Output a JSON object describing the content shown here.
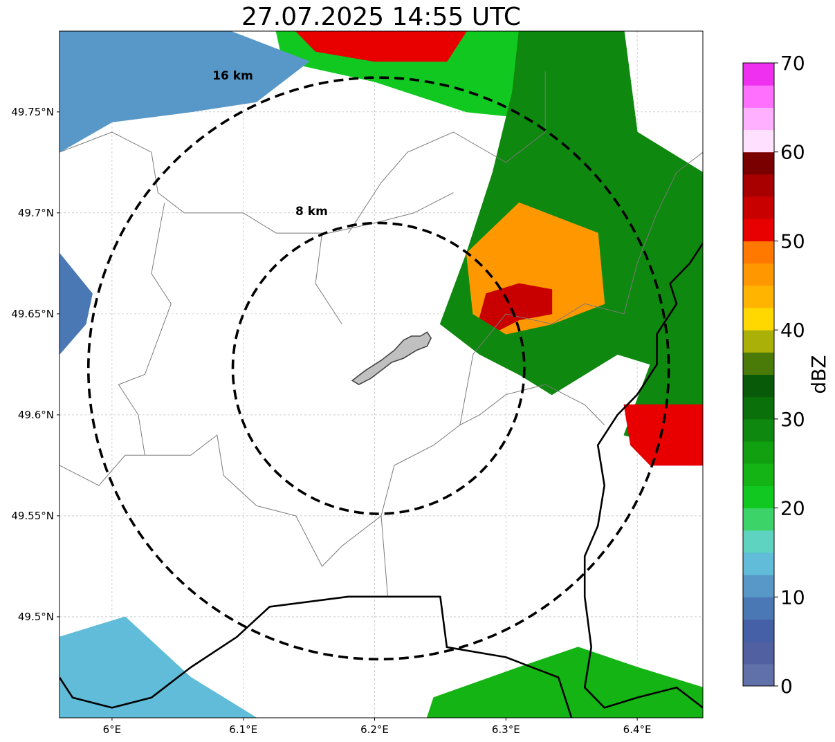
{
  "title": "27.07.2025 14:55 UTC",
  "map": {
    "lon_range": [
      5.96,
      6.45
    ],
    "lat_range": [
      49.45,
      49.79
    ],
    "x_ticks": [
      {
        "value": 6.0,
        "label": "6°E"
      },
      {
        "value": 6.1,
        "label": "6.1°E"
      },
      {
        "value": 6.2,
        "label": "6.2°E"
      },
      {
        "value": 6.3,
        "label": "6.3°E"
      },
      {
        "value": 6.4,
        "label": "6.4°E"
      }
    ],
    "y_ticks": [
      {
        "value": 49.5,
        "label": "49.5°N"
      },
      {
        "value": 49.55,
        "label": "49.55°N"
      },
      {
        "value": 49.6,
        "label": "49.6°N"
      },
      {
        "value": 49.65,
        "label": "49.65°N"
      },
      {
        "value": 49.7,
        "label": "49.7°N"
      },
      {
        "value": 49.75,
        "label": "49.75°N"
      }
    ],
    "grid": true,
    "radar_center": {
      "lon": 6.203,
      "lat": 49.623
    },
    "range_rings": [
      {
        "label": "8 km",
        "radius_lon": 0.111,
        "radius_lat": 0.072,
        "label_lon": 6.152,
        "label_lat": 49.699
      },
      {
        "label": "16 km",
        "radius_lon": 0.221,
        "radius_lat": 0.144,
        "label_lon": 6.092,
        "label_lat": 49.766
      }
    ]
  },
  "colorbar": {
    "label": "dBZ",
    "min": 0,
    "max": 70,
    "ticks": [
      {
        "value": 0,
        "label": "0"
      },
      {
        "value": 10,
        "label": "10"
      },
      {
        "value": 20,
        "label": "20"
      },
      {
        "value": 30,
        "label": "30"
      },
      {
        "value": 40,
        "label": "40"
      },
      {
        "value": 50,
        "label": "50"
      },
      {
        "value": 60,
        "label": "60"
      },
      {
        "value": 70,
        "label": "70"
      }
    ],
    "colors": [
      "#6070a8",
      "#5060a0",
      "#4660a8",
      "#4a78b4",
      "#5898c8",
      "#60bcd8",
      "#5ed4c0",
      "#3cd468",
      "#10c820",
      "#14b414",
      "#10a010",
      "#0e880e",
      "#0a700a",
      "#085a08",
      "#4a7a08",
      "#aab008",
      "#ffd800",
      "#ffb400",
      "#ff9800",
      "#ff7800",
      "#e80000",
      "#c80000",
      "#a80000",
      "#7a0000",
      "#ffe0ff",
      "#ffb0ff",
      "#ff70ff",
      "#f030f0"
    ]
  },
  "reflectivity_areas": [
    {
      "name": "cell-north-top",
      "dbz": 22,
      "points": [
        [
          6.125,
          49.79
        ],
        [
          6.35,
          49.79
        ],
        [
          6.345,
          49.745
        ],
        [
          6.27,
          49.75
        ],
        [
          6.2,
          49.765
        ],
        [
          6.13,
          49.775
        ]
      ]
    },
    {
      "name": "cell-north-core",
      "dbz": 50,
      "points": [
        [
          6.14,
          49.79
        ],
        [
          6.27,
          49.79
        ],
        [
          6.255,
          49.775
        ],
        [
          6.2,
          49.775
        ],
        [
          6.155,
          49.78
        ]
      ]
    },
    {
      "name": "cell-northeast-main",
      "dbz": 28,
      "points": [
        [
          6.31,
          49.79
        ],
        [
          6.39,
          49.79
        ],
        [
          6.4,
          49.74
        ],
        [
          6.45,
          49.72
        ],
        [
          6.45,
          49.58
        ],
        [
          6.39,
          49.59
        ],
        [
          6.41,
          49.625
        ],
        [
          6.385,
          49.63
        ],
        [
          6.335,
          49.61
        ],
        [
          6.31,
          49.62
        ],
        [
          6.28,
          49.63
        ],
        [
          6.25,
          49.645
        ],
        [
          6.27,
          49.68
        ],
        [
          6.29,
          49.72
        ],
        [
          6.305,
          49.76
        ]
      ]
    },
    {
      "name": "cell-northeast-core",
      "dbz": 46,
      "points": [
        [
          6.27,
          49.68
        ],
        [
          6.31,
          49.705
        ],
        [
          6.37,
          49.69
        ],
        [
          6.375,
          49.655
        ],
        [
          6.335,
          49.645
        ],
        [
          6.3,
          49.64
        ],
        [
          6.275,
          49.65
        ]
      ]
    },
    {
      "name": "cell-northeast-max",
      "dbz": 54,
      "points": [
        [
          6.285,
          49.66
        ],
        [
          6.31,
          49.665
        ],
        [
          6.335,
          49.662
        ],
        [
          6.335,
          49.65
        ],
        [
          6.31,
          49.647
        ],
        [
          6.295,
          49.642
        ],
        [
          6.28,
          49.648
        ]
      ]
    },
    {
      "name": "cell-east-edge",
      "dbz": 52,
      "points": [
        [
          6.39,
          49.605
        ],
        [
          6.45,
          49.605
        ],
        [
          6.45,
          49.575
        ],
        [
          6.41,
          49.575
        ],
        [
          6.395,
          49.585
        ]
      ]
    },
    {
      "name": "cell-southeast",
      "dbz": 24,
      "points": [
        [
          6.245,
          49.46
        ],
        [
          6.31,
          49.475
        ],
        [
          6.355,
          49.485
        ],
        [
          6.4,
          49.475
        ],
        [
          6.45,
          49.465
        ],
        [
          6.45,
          49.45
        ],
        [
          6.24,
          49.45
        ]
      ]
    },
    {
      "name": "cell-southwest",
      "dbz": 14,
      "points": [
        [
          5.96,
          49.49
        ],
        [
          6.01,
          49.5
        ],
        [
          6.06,
          49.47
        ],
        [
          6.11,
          49.45
        ],
        [
          5.96,
          49.45
        ]
      ]
    },
    {
      "name": "cell-northwest",
      "dbz": 12,
      "points": [
        [
          5.96,
          49.79
        ],
        [
          6.09,
          49.79
        ],
        [
          6.15,
          49.775
        ],
        [
          6.11,
          49.755
        ],
        [
          6.06,
          49.75
        ],
        [
          6.0,
          49.745
        ],
        [
          5.96,
          49.73
        ]
      ]
    },
    {
      "name": "cell-west-edge",
      "dbz": 8,
      "points": [
        [
          5.96,
          49.68
        ],
        [
          5.985,
          49.66
        ],
        [
          5.98,
          49.645
        ],
        [
          5.96,
          49.63
        ]
      ]
    }
  ],
  "borders": {
    "international": [
      [
        [
          6.35,
          49.45
        ],
        [
          6.34,
          49.47
        ],
        [
          6.3,
          49.48
        ],
        [
          6.255,
          49.485
        ],
        [
          6.25,
          49.51
        ],
        [
          6.18,
          49.51
        ],
        [
          6.12,
          49.505
        ],
        [
          6.095,
          49.49
        ],
        [
          6.06,
          49.475
        ],
        [
          6.03,
          49.46
        ],
        [
          6.0,
          49.455
        ],
        [
          5.97,
          49.46
        ],
        [
          5.96,
          49.47
        ]
      ],
      [
        [
          6.45,
          49.685
        ],
        [
          6.44,
          49.675
        ],
        [
          6.425,
          49.665
        ],
        [
          6.43,
          49.655
        ],
        [
          6.415,
          49.64
        ],
        [
          6.415,
          49.625
        ],
        [
          6.4,
          49.61
        ],
        [
          6.385,
          49.6
        ],
        [
          6.37,
          49.585
        ],
        [
          6.375,
          49.565
        ],
        [
          6.37,
          49.545
        ],
        [
          6.36,
          49.53
        ],
        [
          6.36,
          49.51
        ],
        [
          6.365,
          49.485
        ],
        [
          6.36,
          49.465
        ],
        [
          6.375,
          49.455
        ],
        [
          6.4,
          49.46
        ],
        [
          6.43,
          49.465
        ],
        [
          6.45,
          49.455
        ]
      ]
    ],
    "internal": [
      [
        [
          5.96,
          49.73
        ],
        [
          6.0,
          49.74
        ],
        [
          6.03,
          49.73
        ],
        [
          6.035,
          49.71
        ],
        [
          6.055,
          49.7
        ],
        [
          6.1,
          49.7
        ],
        [
          6.125,
          49.69
        ],
        [
          6.165,
          49.69
        ],
        [
          6.2,
          49.695
        ],
        [
          6.23,
          49.7
        ],
        [
          6.26,
          49.71
        ]
      ],
      [
        [
          5.96,
          49.575
        ],
        [
          5.99,
          49.565
        ],
        [
          6.01,
          49.58
        ],
        [
          6.06,
          49.58
        ],
        [
          6.08,
          49.59
        ],
        [
          6.085,
          49.57
        ],
        [
          6.11,
          49.555
        ],
        [
          6.14,
          49.55
        ],
        [
          6.16,
          49.525
        ],
        [
          6.175,
          49.535
        ],
        [
          6.205,
          49.55
        ],
        [
          6.215,
          49.575
        ],
        [
          6.245,
          49.585
        ],
        [
          6.265,
          49.595
        ],
        [
          6.28,
          49.6
        ],
        [
          6.3,
          49.61
        ],
        [
          6.33,
          49.615
        ],
        [
          6.36,
          49.605
        ],
        [
          6.375,
          49.595
        ]
      ],
      [
        [
          6.04,
          49.705
        ],
        [
          6.03,
          49.67
        ],
        [
          6.045,
          49.655
        ],
        [
          6.025,
          49.62
        ],
        [
          6.005,
          49.615
        ],
        [
          6.02,
          49.6
        ],
        [
          6.025,
          49.58
        ]
      ],
      [
        [
          6.175,
          49.645
        ],
        [
          6.155,
          49.665
        ],
        [
          6.16,
          49.69
        ]
      ],
      [
        [
          6.205,
          49.55
        ],
        [
          6.21,
          49.51
        ]
      ],
      [
        [
          6.265,
          49.595
        ],
        [
          6.275,
          49.63
        ],
        [
          6.3,
          49.65
        ],
        [
          6.335,
          49.645
        ],
        [
          6.36,
          49.655
        ],
        [
          6.39,
          49.65
        ],
        [
          6.4,
          49.675
        ],
        [
          6.415,
          49.7
        ],
        [
          6.43,
          49.72
        ],
        [
          6.45,
          49.73
        ]
      ],
      [
        [
          6.18,
          49.69
        ],
        [
          6.205,
          49.715
        ],
        [
          6.225,
          49.73
        ],
        [
          6.26,
          49.74
        ],
        [
          6.3,
          49.725
        ],
        [
          6.33,
          49.74
        ],
        [
          6.33,
          49.77
        ]
      ]
    ]
  },
  "city": {
    "name": "city-outline",
    "points": [
      [
        6.183,
        49.617
      ],
      [
        6.193,
        49.622
      ],
      [
        6.205,
        49.627
      ],
      [
        6.215,
        49.632
      ],
      [
        6.222,
        49.637
      ],
      [
        6.228,
        49.639
      ],
      [
        6.235,
        49.639
      ],
      [
        6.24,
        49.641
      ],
      [
        6.243,
        49.638
      ],
      [
        6.24,
        49.634
      ],
      [
        6.232,
        49.632
      ],
      [
        6.222,
        49.628
      ],
      [
        6.213,
        49.626
      ],
      [
        6.205,
        49.622
      ],
      [
        6.197,
        49.618
      ],
      [
        6.188,
        49.615
      ]
    ]
  }
}
